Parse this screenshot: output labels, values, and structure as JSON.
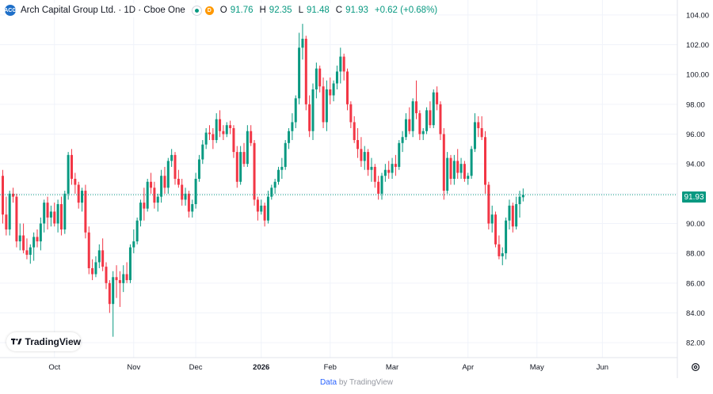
{
  "header": {
    "logo_text": "ACG",
    "title": "Arch Capital Group Ltd. · 1D · Cboe One",
    "status_icon": "market-open-dot",
    "badge": "D",
    "open_label": "O",
    "open_value": "91.76",
    "high_label": "H",
    "high_value": "92.35",
    "low_label": "L",
    "low_value": "91.48",
    "close_label": "C",
    "close_value": "91.93",
    "change": "+0.62 (+0.68%)"
  },
  "last_price_label": "91.93",
  "logo": {
    "text": "TradingView"
  },
  "footer": {
    "data": "Data",
    "by": "by TradingView"
  },
  "colors": {
    "up": "#089981",
    "down": "#f23645",
    "grid": "#f0f3fa",
    "axis_text": "#131722"
  },
  "chart_data": {
    "type": "candlestick",
    "y_axis": {
      "position": "right",
      "min": 81,
      "max": 105,
      "ticks": [
        "82.00",
        "84.00",
        "86.00",
        "88.00",
        "90.00",
        "92.00",
        "94.00",
        "96.00",
        "98.00",
        "100.00",
        "102.00",
        "104.00"
      ]
    },
    "x_axis": {
      "labels": [
        "Oct",
        "Nov",
        "Dec",
        "2026",
        "Feb",
        "Mar",
        "Apr",
        "May",
        "Jun"
      ],
      "label_index": [
        15,
        38,
        56,
        75,
        95,
        113,
        135,
        155,
        174
      ]
    },
    "last_price": 91.93,
    "series": [
      {
        "ohlc": [
          [
            93.2,
            93.6,
            90.0,
            90.6
          ],
          [
            90.6,
            91.8,
            89.2,
            89.6
          ],
          [
            89.6,
            92.2,
            89.2,
            92.0
          ],
          [
            92.0,
            92.4,
            91.4,
            91.8
          ],
          [
            91.8,
            92.0,
            88.4,
            88.8
          ],
          [
            88.8,
            90.0,
            88.2,
            89.2
          ],
          [
            89.2,
            90.0,
            88.0,
            88.2
          ],
          [
            88.2,
            89.0,
            87.6,
            87.9
          ],
          [
            87.9,
            88.6,
            87.3,
            88.4
          ],
          [
            88.4,
            89.4,
            87.5,
            89.1
          ],
          [
            89.1,
            89.6,
            88.4,
            88.8
          ],
          [
            88.8,
            90.4,
            88.2,
            90.0
          ],
          [
            90.0,
            91.6,
            89.4,
            91.4
          ],
          [
            91.4,
            91.8,
            89.6,
            90.4
          ],
          [
            90.4,
            91.2,
            89.8,
            90.8
          ],
          [
            90.8,
            91.4,
            89.8,
            90.0
          ],
          [
            90.0,
            91.6,
            89.4,
            91.3
          ],
          [
            91.3,
            91.8,
            89.2,
            89.6
          ],
          [
            89.6,
            92.2,
            89.3,
            92.0
          ],
          [
            92.0,
            94.8,
            91.6,
            94.6
          ],
          [
            94.6,
            95.0,
            92.6,
            93.0
          ],
          [
            93.0,
            93.4,
            92.0,
            92.6
          ],
          [
            92.6,
            92.8,
            91.0,
            91.4
          ],
          [
            91.4,
            92.4,
            90.8,
            92.2
          ],
          [
            92.2,
            92.6,
            89.0,
            89.4
          ],
          [
            89.4,
            89.8,
            86.6,
            87.0
          ],
          [
            87.0,
            87.6,
            86.2,
            86.6
          ],
          [
            86.6,
            87.8,
            86.4,
            87.4
          ],
          [
            87.4,
            88.6,
            87.0,
            88.2
          ],
          [
            88.2,
            89.0,
            86.8,
            87.1
          ],
          [
            87.1,
            87.4,
            85.6,
            86.0
          ],
          [
            86.0,
            86.2,
            84.0,
            84.6
          ],
          [
            84.6,
            86.8,
            82.4,
            86.4
          ],
          [
            86.4,
            87.2,
            85.0,
            86.2
          ],
          [
            86.2,
            86.8,
            84.4,
            86.0
          ],
          [
            86.0,
            87.2,
            85.4,
            86.6
          ],
          [
            86.6,
            87.4,
            86.0,
            86.2
          ],
          [
            86.2,
            88.6,
            86.0,
            88.4
          ],
          [
            88.4,
            89.6,
            88.0,
            88.8
          ],
          [
            88.8,
            90.4,
            88.6,
            90.2
          ],
          [
            90.2,
            91.6,
            89.8,
            91.4
          ],
          [
            91.4,
            92.4,
            90.2,
            91.0
          ],
          [
            91.0,
            93.0,
            90.8,
            92.8
          ],
          [
            92.8,
            93.4,
            92.0,
            92.4
          ],
          [
            92.4,
            92.8,
            91.0,
            91.4
          ],
          [
            91.4,
            92.0,
            90.8,
            91.8
          ],
          [
            91.8,
            93.6,
            91.4,
            93.2
          ],
          [
            93.2,
            93.8,
            92.0,
            92.4
          ],
          [
            92.4,
            94.4,
            92.0,
            94.2
          ],
          [
            94.2,
            95.0,
            93.8,
            94.6
          ],
          [
            94.6,
            94.8,
            92.6,
            93.0
          ],
          [
            93.0,
            93.6,
            92.4,
            92.6
          ],
          [
            92.6,
            93.0,
            91.2,
            91.6
          ],
          [
            91.6,
            92.4,
            91.2,
            92.0
          ],
          [
            92.0,
            92.2,
            90.4,
            90.8
          ],
          [
            90.8,
            91.6,
            90.4,
            91.3
          ],
          [
            91.3,
            93.4,
            91.0,
            93.0
          ],
          [
            93.0,
            94.6,
            92.8,
            94.3
          ],
          [
            94.3,
            95.6,
            94.0,
            95.3
          ],
          [
            95.3,
            96.4,
            95.0,
            96.1
          ],
          [
            96.1,
            96.6,
            95.6,
            96.0
          ],
          [
            96.0,
            96.4,
            95.0,
            95.6
          ],
          [
            95.6,
            97.4,
            95.4,
            97.0
          ],
          [
            97.0,
            97.6,
            95.8,
            96.2
          ],
          [
            96.2,
            96.6,
            95.6,
            96.0
          ],
          [
            96.0,
            96.8,
            95.8,
            96.6
          ],
          [
            96.6,
            96.9,
            96.0,
            96.4
          ],
          [
            96.4,
            96.6,
            94.4,
            94.8
          ],
          [
            94.8,
            95.2,
            92.4,
            92.8
          ],
          [
            92.8,
            95.2,
            92.6,
            94.8
          ],
          [
            94.8,
            95.4,
            93.8,
            94.0
          ],
          [
            94.0,
            96.6,
            93.8,
            96.2
          ],
          [
            96.2,
            96.6,
            95.2,
            95.4
          ],
          [
            95.4,
            95.6,
            91.2,
            91.6
          ],
          [
            91.6,
            91.8,
            90.2,
            90.8
          ],
          [
            90.8,
            91.6,
            90.6,
            91.2
          ],
          [
            91.2,
            91.4,
            89.8,
            90.2
          ],
          [
            90.2,
            92.2,
            90.0,
            91.8
          ],
          [
            91.8,
            92.6,
            91.6,
            92.4
          ],
          [
            92.4,
            93.0,
            92.0,
            92.8
          ],
          [
            92.8,
            93.8,
            92.6,
            93.6
          ],
          [
            93.6,
            94.4,
            93.0,
            93.8
          ],
          [
            93.8,
            95.6,
            93.6,
            95.4
          ],
          [
            95.4,
            96.4,
            95.0,
            96.2
          ],
          [
            96.2,
            97.4,
            95.6,
            96.8
          ],
          [
            96.8,
            98.6,
            96.4,
            98.4
          ],
          [
            98.4,
            102.8,
            98.0,
            101.8
          ],
          [
            101.8,
            103.4,
            101.0,
            102.4
          ],
          [
            102.4,
            102.6,
            97.6,
            98.0
          ],
          [
            98.0,
            98.6,
            95.8,
            96.2
          ],
          [
            96.2,
            99.4,
            95.6,
            99.0
          ],
          [
            99.0,
            100.8,
            98.4,
            100.4
          ],
          [
            100.4,
            100.6,
            98.8,
            99.2
          ],
          [
            99.2,
            99.8,
            96.4,
            96.8
          ],
          [
            96.8,
            99.6,
            96.2,
            99.0
          ],
          [
            99.0,
            99.8,
            98.0,
            98.6
          ],
          [
            98.6,
            99.6,
            98.2,
            99.4
          ],
          [
            99.4,
            100.6,
            99.0,
            100.2
          ],
          [
            100.2,
            101.8,
            99.4,
            101.2
          ],
          [
            101.2,
            101.4,
            99.6,
            100.2
          ],
          [
            100.2,
            100.4,
            97.6,
            98.0
          ],
          [
            98.0,
            98.2,
            96.4,
            96.8
          ],
          [
            96.8,
            97.2,
            95.4,
            95.6
          ],
          [
            95.6,
            96.4,
            94.4,
            95.0
          ],
          [
            95.0,
            95.8,
            93.8,
            94.2
          ],
          [
            94.2,
            95.2,
            93.6,
            94.8
          ],
          [
            94.8,
            95.0,
            93.2,
            93.6
          ],
          [
            93.6,
            94.4,
            92.8,
            93.8
          ],
          [
            93.8,
            94.0,
            92.4,
            92.8
          ],
          [
            92.8,
            93.2,
            91.6,
            92.0
          ],
          [
            92.0,
            93.4,
            91.6,
            93.2
          ],
          [
            93.2,
            94.0,
            92.8,
            93.6
          ],
          [
            93.6,
            94.2,
            93.0,
            93.4
          ],
          [
            93.4,
            94.4,
            93.0,
            94.0
          ],
          [
            94.0,
            94.6,
            93.2,
            93.8
          ],
          [
            93.8,
            95.6,
            93.6,
            95.4
          ],
          [
            95.4,
            96.2,
            94.8,
            95.8
          ],
          [
            95.8,
            97.4,
            95.6,
            97.0
          ],
          [
            97.0,
            97.8,
            96.0,
            96.2
          ],
          [
            96.2,
            98.4,
            95.8,
            98.2
          ],
          [
            98.2,
            99.6,
            97.0,
            97.4
          ],
          [
            97.4,
            97.6,
            95.6,
            96.0
          ],
          [
            96.0,
            96.4,
            95.6,
            96.2
          ],
          [
            96.2,
            97.8,
            96.0,
            97.6
          ],
          [
            97.6,
            98.2,
            96.4,
            96.6
          ],
          [
            96.6,
            99.0,
            96.4,
            98.8
          ],
          [
            98.8,
            99.2,
            97.6,
            98.0
          ],
          [
            98.0,
            98.2,
            95.6,
            96.0
          ],
          [
            96.0,
            96.4,
            91.6,
            92.2
          ],
          [
            92.2,
            94.8,
            92.0,
            94.4
          ],
          [
            94.4,
            94.6,
            92.6,
            93.0
          ],
          [
            93.0,
            94.6,
            92.6,
            94.2
          ],
          [
            94.2,
            95.0,
            93.0,
            93.4
          ],
          [
            93.4,
            94.4,
            93.0,
            94.0
          ],
          [
            94.0,
            94.2,
            92.8,
            93.0
          ],
          [
            93.0,
            93.4,
            92.6,
            93.2
          ],
          [
            93.2,
            95.2,
            93.0,
            95.0
          ],
          [
            95.0,
            97.4,
            94.8,
            96.8
          ],
          [
            96.8,
            97.2,
            95.8,
            96.4
          ],
          [
            96.4,
            97.2,
            95.6,
            95.8
          ],
          [
            95.8,
            96.2,
            92.0,
            92.6
          ],
          [
            92.6,
            92.8,
            89.6,
            90.0
          ],
          [
            90.0,
            91.2,
            89.4,
            90.6
          ],
          [
            90.6,
            90.8,
            88.4,
            88.6
          ],
          [
            88.6,
            89.2,
            87.6,
            87.8
          ],
          [
            87.8,
            88.4,
            87.2,
            88.0
          ],
          [
            88.0,
            90.4,
            87.6,
            90.2
          ],
          [
            90.2,
            91.6,
            89.6,
            91.2
          ],
          [
            91.2,
            91.4,
            89.4,
            89.8
          ],
          [
            89.8,
            91.8,
            89.6,
            91.3
          ],
          [
            91.3,
            92.2,
            90.4,
            91.8
          ],
          [
            91.76,
            92.35,
            91.48,
            91.93
          ]
        ]
      }
    ]
  }
}
